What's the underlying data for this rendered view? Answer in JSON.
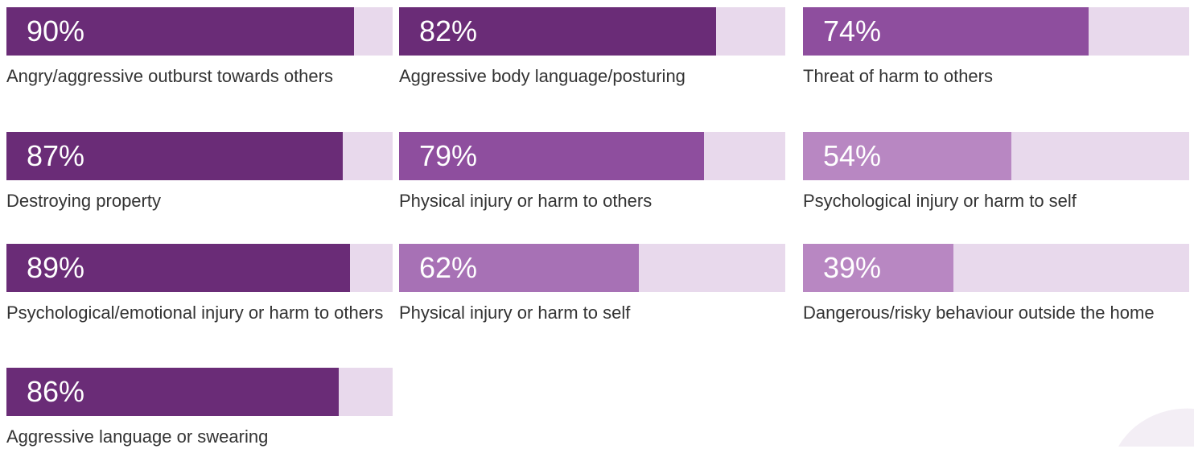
{
  "colors": {
    "track": "#e8d9ec",
    "text": "#333333",
    "pct_text": "#ffffff",
    "dark": "#6a2c77",
    "mid": "#8e4e9e",
    "light": "#a771b5",
    "lighter": "#b887c2"
  },
  "chart_data": {
    "type": "bar",
    "orientation": "horizontal",
    "xlim": [
      0,
      100
    ],
    "items": [
      {
        "value": 90,
        "label_text": "90%",
        "label": "Angry/aggressive outburst towards others",
        "color": "#6a2c77"
      },
      {
        "value": 87,
        "label_text": "87%",
        "label": "Destroying property",
        "color": "#6a2c77"
      },
      {
        "value": 89,
        "label_text": "89%",
        "label": "Psychological/emotional injury or harm to others",
        "color": "#6a2c77"
      },
      {
        "value": 86,
        "label_text": "86%",
        "label": "Aggressive language or swearing",
        "color": "#6a2c77"
      },
      {
        "value": 82,
        "label_text": "82%",
        "label": "Aggressive body language/posturing",
        "color": "#6a2c77"
      },
      {
        "value": 79,
        "label_text": "79%",
        "label": "Physical injury or harm to others",
        "color": "#8e4e9e"
      },
      {
        "value": 62,
        "label_text": "62%",
        "label": "Physical injury or harm to self",
        "color": "#a771b5"
      },
      {
        "value": 74,
        "label_text": "74%",
        "label": "Threat of harm to others",
        "color": "#8e4e9e"
      },
      {
        "value": 54,
        "label_text": "54%",
        "label": "Psychological injury or harm to self",
        "color": "#b887c2"
      },
      {
        "value": 39,
        "label_text": "39%",
        "label": "Dangerous/risky behaviour outside the home",
        "color": "#b887c2"
      }
    ]
  }
}
